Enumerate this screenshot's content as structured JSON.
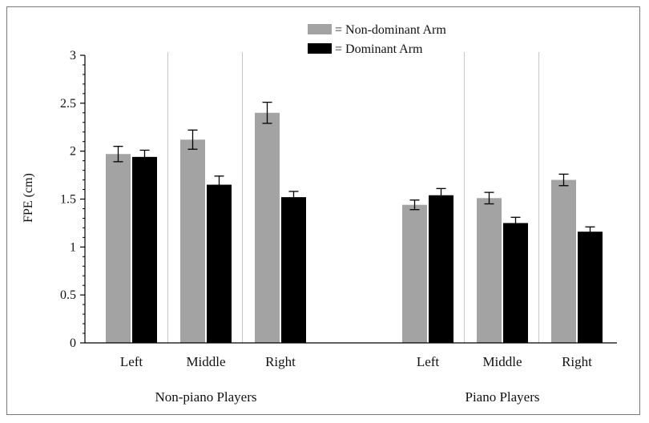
{
  "chart_data": {
    "type": "bar",
    "ylabel": "FPE (cm)",
    "ylim": [
      0,
      3
    ],
    "yticks": [
      "0",
      "0.5",
      "1",
      "1.5",
      "2",
      "2.5",
      "3"
    ],
    "legend": {
      "placement": "top-center",
      "entries": [
        {
          "label": "= Non-dominant Arm",
          "color": "#a3a3a3"
        },
        {
          "label": "= Dominant Arm",
          "color": "#000000"
        }
      ]
    },
    "groups": [
      {
        "label": "Non-piano Players",
        "categories": [
          "Left",
          "Middle",
          "Right"
        ],
        "series": [
          {
            "name": "Non-dominant Arm",
            "values": [
              1.97,
              2.12,
              2.4
            ],
            "errors": [
              0.08,
              0.1,
              0.11
            ]
          },
          {
            "name": "Dominant Arm",
            "values": [
              1.94,
              1.65,
              1.52
            ],
            "errors": [
              0.07,
              0.09,
              0.06
            ]
          }
        ]
      },
      {
        "label": "Piano Players",
        "categories": [
          "Left",
          "Middle",
          "Right"
        ],
        "series": [
          {
            "name": "Non-dominant Arm",
            "values": [
              1.44,
              1.51,
              1.7
            ],
            "errors": [
              0.05,
              0.06,
              0.06
            ]
          },
          {
            "name": "Dominant Arm",
            "values": [
              1.54,
              1.25,
              1.16
            ],
            "errors": [
              0.07,
              0.06,
              0.05
            ]
          }
        ]
      }
    ],
    "colors": {
      "non_dominant": "#a3a3a3",
      "dominant": "#000000",
      "separator": "#c8c8c8"
    }
  }
}
